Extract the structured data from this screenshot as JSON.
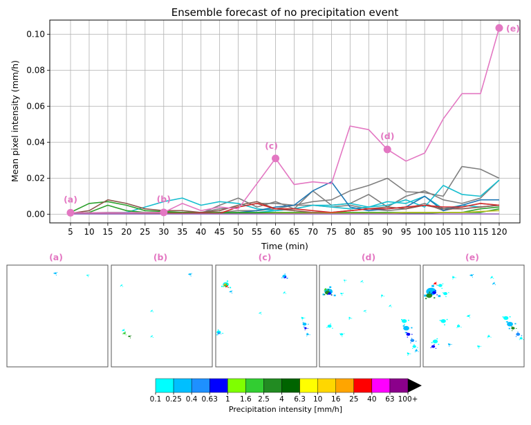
{
  "chart_data": [
    {
      "type": "line",
      "title": "Ensemble forecast of no precipitation event",
      "xlabel": "Time (min)",
      "ylabel": "Mean pixel intensity (mm/h)",
      "grid": true,
      "x": [
        5,
        10,
        15,
        20,
        25,
        30,
        35,
        40,
        45,
        50,
        55,
        60,
        65,
        70,
        75,
        80,
        85,
        90,
        95,
        100,
        105,
        110,
        115,
        120
      ],
      "xlim": [
        5,
        120
      ],
      "ylim": [
        0,
        0.105
      ],
      "yticks": [
        0.0,
        0.02,
        0.04,
        0.06,
        0.08,
        0.1
      ],
      "ytick_labels": [
        "0.00",
        "0.02",
        "0.04",
        "0.06",
        "0.08",
        "0.10"
      ],
      "series": [
        {
          "color": "#7f7f7f",
          "values": [
            0.0005,
            0.0008,
            0.001,
            0.001,
            0.001,
            0.001,
            0.001,
            0.001,
            0.003,
            0.004,
            0.006,
            0.006,
            0.005,
            0.007,
            0.008,
            0.013,
            0.016,
            0.02,
            0.0125,
            0.012,
            0.01,
            0.0265,
            0.025,
            0.02
          ]
        },
        {
          "color": "#7f7f7f",
          "values": [
            0.0003,
            0.0004,
            0.0005,
            0.0005,
            0.0005,
            0.0005,
            0.0005,
            0.0005,
            0.005,
            0.009,
            0.004,
            0.007,
            0.003,
            0.013,
            0.005,
            0.006,
            0.011,
            0.004,
            0.01,
            0.013,
            0.008,
            0.006,
            0.009,
            0.019
          ]
        },
        {
          "color": "#7f7f7f",
          "values": [
            0.0003,
            0.0003,
            0.0004,
            0.0004,
            0.0004,
            0.0004,
            0.0004,
            0.0004,
            0.001,
            0.002,
            0.002,
            0.003,
            0.005,
            0.005,
            0.004,
            0.005,
            0.003,
            0.002,
            0.003,
            0.006,
            0.002,
            0.004,
            0.006,
            0.005
          ]
        },
        {
          "color": "#17becf",
          "values": [
            0.0005,
            0.0005,
            0.0005,
            0.001,
            0.004,
            0.007,
            0.009,
            0.005,
            0.007,
            0.006,
            0.003,
            0.002,
            0.003,
            0.005,
            0.004,
            0.003,
            0.004,
            0.005,
            0.008,
            0.004,
            0.016,
            0.011,
            0.01,
            0.019
          ]
        },
        {
          "color": "#17becf",
          "values": [
            0.0002,
            0.0002,
            0.0002,
            0.0002,
            0.0002,
            0.0003,
            0.0003,
            0.0003,
            0.0003,
            0.0005,
            0.001,
            0.002,
            0.003,
            0.005,
            0.005,
            0.006,
            0.004,
            0.007,
            0.006,
            0.01,
            0.003,
            0.005,
            0.004,
            0.005
          ]
        },
        {
          "color": "#1f77b4",
          "values": [
            0.0002,
            0.0002,
            0.0002,
            0.0002,
            0.0002,
            0.0002,
            0.0002,
            0.0002,
            0.0005,
            0.001,
            0.002,
            0.004,
            0.005,
            0.013,
            0.018,
            0.004,
            0.002,
            0.003,
            0.004,
            0.01,
            0.002,
            0.005,
            0.008,
            0.008
          ]
        },
        {
          "color": "#2ca02c",
          "values": [
            0.001,
            0.006,
            0.007,
            0.005,
            0.002,
            0.0015,
            0.001,
            0.001,
            0.001,
            0.001,
            0.001,
            0.001,
            0.001,
            0.001,
            0.001,
            0.001,
            0.001,
            0.001,
            0.001,
            0.001,
            0.001,
            0.001,
            0.003,
            0.004
          ]
        },
        {
          "color": "#2ca02c",
          "values": [
            0.0005,
            0.001,
            0.005,
            0.002,
            0.001,
            0.001,
            0.0005,
            0.0005,
            0.0005,
            0.0005,
            0.0005,
            0.0005,
            0.0005,
            0.0005,
            0.0005,
            0.0005,
            0.0005,
            0.0005,
            0.0005,
            0.0005,
            0.001,
            0.001,
            0.001,
            0.003
          ]
        },
        {
          "color": "#8c564b",
          "values": [
            0.0005,
            0.002,
            0.008,
            0.006,
            0.003,
            0.002,
            0.002,
            0.001,
            0.002,
            0.005,
            0.007,
            0.003,
            0.002,
            0.001,
            0.001,
            0.002,
            0.003,
            0.004,
            0.003,
            0.005,
            0.003,
            0.003,
            0.004,
            0.005
          ]
        },
        {
          "color": "#d62728",
          "values": [
            0.0002,
            0.0003,
            0.0004,
            0.0005,
            0.0005,
            0.0005,
            0.0005,
            0.0005,
            0.0005,
            0.004,
            0.006,
            0.003,
            0.003,
            0.002,
            0.001,
            0.002,
            0.003,
            0.003,
            0.004,
            0.005,
            0.004,
            0.004,
            0.006,
            0.005
          ]
        },
        {
          "color": "#bcbd22",
          "values": [
            0.0002,
            0.0002,
            0.0002,
            0.0002,
            0.0002,
            0.0002,
            0.0002,
            0.0002,
            0.0002,
            0.0002,
            0.0002,
            0.0005,
            0.0005,
            0.0005,
            0.0005,
            0.0005,
            0.0005,
            0.0005,
            0.001,
            0.001,
            0.001,
            0.001,
            0.0015,
            0.002
          ]
        },
        {
          "color": "#9467bd",
          "values": [
            0.0001,
            0.0001,
            0.0001,
            0.0001,
            0.0001,
            0.0001,
            0.0001,
            0.0001,
            0.0001,
            0.0001,
            0.0001,
            0.0001,
            0.0001,
            0.0001,
            0.0001,
            0.0001,
            0.0001,
            0.0001,
            0.0001,
            0.0001,
            0.0001,
            0.0001,
            0.0001,
            0.0001
          ]
        },
        {
          "color": "#e377c2",
          "values": [
            0.0008,
            0.0008,
            0.0008,
            0.0008,
            0.0009,
            0.001,
            0.006,
            0.002,
            0.004,
            0.003,
            0.017,
            0.031,
            0.0165,
            0.018,
            0.017,
            0.049,
            0.047,
            0.036,
            0.0295,
            0.034,
            0.053,
            0.067,
            0.067,
            0.1035
          ]
        }
      ],
      "annotations": [
        {
          "label": "(a)",
          "x": 5,
          "y": 0.0008
        },
        {
          "label": "(b)",
          "x": 30,
          "y": 0.001
        },
        {
          "label": "(c)",
          "x": 60,
          "y": 0.031
        },
        {
          "label": "(d)",
          "x": 90,
          "y": 0.036
        },
        {
          "label": "(e)",
          "x": 120,
          "y": 0.1035
        }
      ],
      "annotation_color": "#e377c2"
    },
    {
      "type": "heatmap",
      "panel_labels": [
        "(a)",
        "(b)",
        "(c)",
        "(d)",
        "(e)"
      ],
      "colorbar": {
        "title": "Precipitation intensity [mm/h]",
        "tick_labels": [
          "0.1",
          "0.25",
          "0.4",
          "0.63",
          "1",
          "1.6",
          "2.5",
          "4",
          "6.3",
          "10",
          "16",
          "25",
          "40",
          "63",
          "100+"
        ],
        "colors": [
          "#00ffff",
          "#00bfff",
          "#1e90ff",
          "#0000ff",
          "#7fff00",
          "#32cd32",
          "#228b22",
          "#006400",
          "#ffff00",
          "#ffd700",
          "#ffa500",
          "#ff0000",
          "#ff00ff",
          "#8b008b"
        ]
      },
      "panels": [
        {
          "blobs": [
            {
              "x": 0.48,
              "y": 0.08,
              "r": 0.012,
              "c": "#00bfff"
            },
            {
              "x": 0.8,
              "y": 0.1,
              "r": 0.008,
              "c": "#00ffff"
            }
          ]
        },
        {
          "blobs": [
            {
              "x": 0.78,
              "y": 0.09,
              "r": 0.012,
              "c": "#00bfff"
            },
            {
              "x": 0.1,
              "y": 0.2,
              "r": 0.008,
              "c": "#00ffff"
            },
            {
              "x": 0.4,
              "y": 0.7,
              "r": 0.006,
              "c": "#00ffff"
            },
            {
              "x": 0.12,
              "y": 0.64,
              "r": 0.01,
              "c": "#00ffff"
            },
            {
              "x": 0.13,
              "y": 0.67,
              "r": 0.012,
              "c": "#32cd32"
            },
            {
              "x": 0.18,
              "y": 0.7,
              "r": 0.01,
              "c": "#228b22"
            },
            {
              "x": 0.4,
              "y": 0.45,
              "r": 0.006,
              "c": "#00ffff"
            }
          ]
        },
        {
          "blobs": [
            {
              "x": 0.68,
              "y": 0.11,
              "r": 0.02,
              "c": "#00bfff"
            },
            {
              "x": 0.69,
              "y": 0.12,
              "r": 0.01,
              "c": "#0000ff"
            },
            {
              "x": 0.1,
              "y": 0.19,
              "r": 0.03,
              "c": "#00ffff"
            },
            {
              "x": 0.1,
              "y": 0.2,
              "r": 0.018,
              "c": "#32cd32"
            },
            {
              "x": 0.09,
              "y": 0.19,
              "r": 0.01,
              "c": "#ffa500"
            },
            {
              "x": 0.11,
              "y": 0.21,
              "r": 0.007,
              "c": "#ff0000"
            },
            {
              "x": 0.15,
              "y": 0.26,
              "r": 0.01,
              "c": "#00bfff"
            },
            {
              "x": 0.03,
              "y": 0.66,
              "r": 0.022,
              "c": "#00ffff"
            },
            {
              "x": 0.03,
              "y": 0.67,
              "r": 0.012,
              "c": "#1e90ff"
            },
            {
              "x": 0.86,
              "y": 0.52,
              "r": 0.012,
              "c": "#00ffff"
            },
            {
              "x": 0.88,
              "y": 0.58,
              "r": 0.02,
              "c": "#00bfff"
            },
            {
              "x": 0.89,
              "y": 0.62,
              "r": 0.012,
              "c": "#0000ff"
            },
            {
              "x": 0.91,
              "y": 0.68,
              "r": 0.012,
              "c": "#00bfff"
            },
            {
              "x": 0.44,
              "y": 0.47,
              "r": 0.006,
              "c": "#00ffff"
            },
            {
              "x": 0.68,
              "y": 0.27,
              "r": 0.006,
              "c": "#00ffff"
            }
          ]
        },
        {
          "blobs": [
            {
              "x": 0.09,
              "y": 0.26,
              "r": 0.04,
              "c": "#00bfff"
            },
            {
              "x": 0.08,
              "y": 0.27,
              "r": 0.025,
              "c": "#228b22"
            },
            {
              "x": 0.1,
              "y": 0.28,
              "r": 0.015,
              "c": "#0000ff"
            },
            {
              "x": 0.06,
              "y": 0.24,
              "r": 0.012,
              "c": "#32cd32"
            },
            {
              "x": 0.22,
              "y": 0.28,
              "r": 0.01,
              "c": "#00ffff"
            },
            {
              "x": 0.25,
              "y": 0.15,
              "r": 0.008,
              "c": "#00ffff"
            },
            {
              "x": 0.42,
              "y": 0.16,
              "r": 0.008,
              "c": "#00ffff"
            },
            {
              "x": 0.1,
              "y": 0.6,
              "r": 0.02,
              "c": "#00ffff"
            },
            {
              "x": 0.22,
              "y": 0.68,
              "r": 0.015,
              "c": "#00ffff"
            },
            {
              "x": 0.3,
              "y": 0.52,
              "r": 0.01,
              "c": "#00ffff"
            },
            {
              "x": 0.45,
              "y": 0.45,
              "r": 0.006,
              "c": "#00ffff"
            },
            {
              "x": 0.62,
              "y": 0.3,
              "r": 0.01,
              "c": "#00ffff"
            },
            {
              "x": 0.7,
              "y": 0.4,
              "r": 0.008,
              "c": "#00ffff"
            },
            {
              "x": 0.84,
              "y": 0.55,
              "r": 0.025,
              "c": "#00ffff"
            },
            {
              "x": 0.86,
              "y": 0.62,
              "r": 0.03,
              "c": "#00bfff"
            },
            {
              "x": 0.88,
              "y": 0.68,
              "r": 0.02,
              "c": "#0000ff"
            },
            {
              "x": 0.92,
              "y": 0.74,
              "r": 0.02,
              "c": "#1e90ff"
            },
            {
              "x": 0.94,
              "y": 0.8,
              "r": 0.018,
              "c": "#00ffff"
            },
            {
              "x": 0.96,
              "y": 0.84,
              "r": 0.012,
              "c": "#00bfff"
            },
            {
              "x": 0.88,
              "y": 0.87,
              "r": 0.012,
              "c": "#00ffff"
            }
          ]
        },
        {
          "blobs": [
            {
              "x": 0.08,
              "y": 0.26,
              "r": 0.05,
              "c": "#00bfff"
            },
            {
              "x": 0.06,
              "y": 0.3,
              "r": 0.03,
              "c": "#228b22"
            },
            {
              "x": 0.11,
              "y": 0.27,
              "r": 0.02,
              "c": "#0000ff"
            },
            {
              "x": 0.12,
              "y": 0.18,
              "r": 0.012,
              "c": "#ff0000"
            },
            {
              "x": 0.17,
              "y": 0.2,
              "r": 0.02,
              "c": "#00ffff"
            },
            {
              "x": 0.22,
              "y": 0.28,
              "r": 0.02,
              "c": "#00ffff"
            },
            {
              "x": 0.3,
              "y": 0.12,
              "r": 0.012,
              "c": "#00ffff"
            },
            {
              "x": 0.48,
              "y": 0.1,
              "r": 0.012,
              "c": "#00bfff"
            },
            {
              "x": 0.68,
              "y": 0.12,
              "r": 0.01,
              "c": "#00ffff"
            },
            {
              "x": 0.7,
              "y": 0.18,
              "r": 0.01,
              "c": "#00bfff"
            },
            {
              "x": 0.2,
              "y": 0.55,
              "r": 0.025,
              "c": "#00ffff"
            },
            {
              "x": 0.35,
              "y": 0.6,
              "r": 0.015,
              "c": "#00ffff"
            },
            {
              "x": 0.12,
              "y": 0.75,
              "r": 0.025,
              "c": "#00ffff"
            },
            {
              "x": 0.1,
              "y": 0.8,
              "r": 0.018,
              "c": "#0000ff"
            },
            {
              "x": 0.26,
              "y": 0.78,
              "r": 0.012,
              "c": "#00bfff"
            },
            {
              "x": 0.45,
              "y": 0.5,
              "r": 0.012,
              "c": "#00ffff"
            },
            {
              "x": 0.55,
              "y": 0.8,
              "r": 0.012,
              "c": "#00ffff"
            },
            {
              "x": 0.82,
              "y": 0.52,
              "r": 0.025,
              "c": "#00ffff"
            },
            {
              "x": 0.86,
              "y": 0.58,
              "r": 0.03,
              "c": "#00bfff"
            },
            {
              "x": 0.89,
              "y": 0.62,
              "r": 0.018,
              "c": "#228b22"
            },
            {
              "x": 0.94,
              "y": 0.68,
              "r": 0.02,
              "c": "#1e90ff"
            },
            {
              "x": 0.97,
              "y": 0.72,
              "r": 0.014,
              "c": "#00ffff"
            },
            {
              "x": 0.65,
              "y": 0.7,
              "r": 0.012,
              "c": "#00ffff"
            }
          ]
        }
      ]
    }
  ]
}
